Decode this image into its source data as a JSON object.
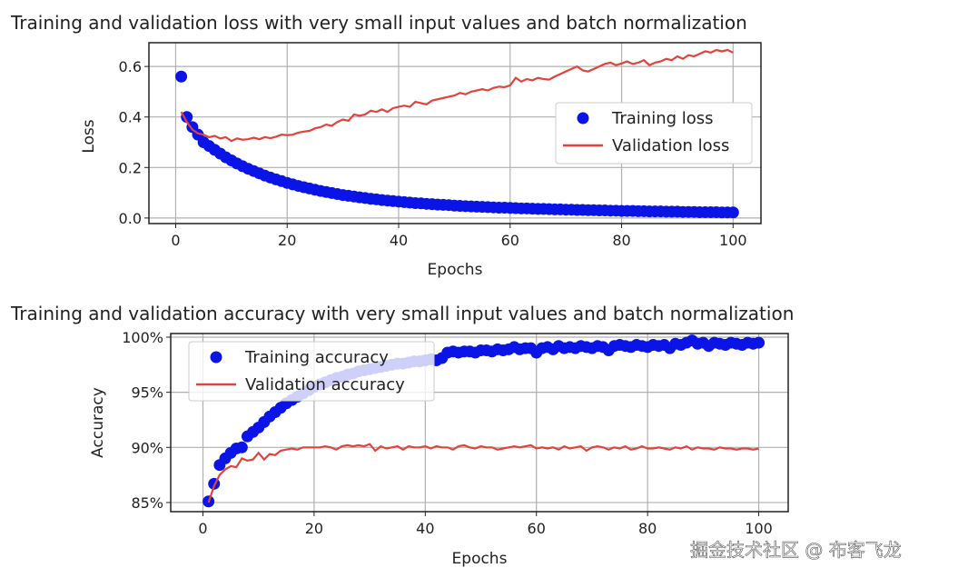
{
  "watermark": "掘金技术社区 @ 布客飞龙",
  "colors": {
    "training": "#0a14e6",
    "validation": "#e0443a",
    "grid": "#b0b0b0"
  },
  "chart_data": [
    {
      "type": "scatter+line",
      "title": "Training and validation loss with very small input values and batch normalization",
      "xlabel": "Epochs",
      "ylabel": "Loss",
      "xlim": [
        -4.8,
        105
      ],
      "ylim": [
        -0.022,
        0.694
      ],
      "xticks": [
        0,
        20,
        40,
        60,
        80,
        100
      ],
      "xtick_labels": [
        "0",
        "20",
        "40",
        "60",
        "80",
        "100"
      ],
      "yticks": [
        0,
        0.2,
        0.4,
        0.6
      ],
      "ytick_labels": [
        "0.0",
        "0.2",
        "0.4",
        "0.6"
      ],
      "grid": true,
      "legend": "center-right",
      "series": [
        {
          "name": "Training loss",
          "style": "points",
          "values": [
            0.56,
            0.4,
            0.36,
            0.33,
            0.3,
            0.285,
            0.27,
            0.255,
            0.24,
            0.228,
            0.216,
            0.205,
            0.195,
            0.186,
            0.177,
            0.168,
            0.16,
            0.153,
            0.146,
            0.139,
            0.133,
            0.127,
            0.122,
            0.117,
            0.112,
            0.107,
            0.103,
            0.099,
            0.095,
            0.091,
            0.088,
            0.085,
            0.082,
            0.079,
            0.076,
            0.074,
            0.071,
            0.069,
            0.067,
            0.065,
            0.063,
            0.061,
            0.059,
            0.058,
            0.056,
            0.055,
            0.053,
            0.052,
            0.051,
            0.049,
            0.048,
            0.047,
            0.046,
            0.045,
            0.044,
            0.043,
            0.042,
            0.041,
            0.041,
            0.04,
            0.039,
            0.038,
            0.038,
            0.037,
            0.036,
            0.036,
            0.035,
            0.034,
            0.034,
            0.033,
            0.033,
            0.032,
            0.032,
            0.031,
            0.031,
            0.03,
            0.03,
            0.029,
            0.029,
            0.028,
            0.028,
            0.028,
            0.027,
            0.027,
            0.026,
            0.026,
            0.026,
            0.025,
            0.025,
            0.025,
            0.024,
            0.024,
            0.024,
            0.023,
            0.023,
            0.023,
            0.023,
            0.022,
            0.022,
            0.022
          ]
        },
        {
          "name": "Validation loss",
          "style": "line",
          "values": [
            0.42,
            0.38,
            0.35,
            0.335,
            0.33,
            0.32,
            0.325,
            0.315,
            0.32,
            0.305,
            0.315,
            0.31,
            0.312,
            0.318,
            0.312,
            0.32,
            0.316,
            0.322,
            0.33,
            0.328,
            0.33,
            0.338,
            0.342,
            0.345,
            0.355,
            0.36,
            0.37,
            0.365,
            0.38,
            0.39,
            0.385,
            0.41,
            0.405,
            0.41,
            0.425,
            0.42,
            0.43,
            0.42,
            0.435,
            0.44,
            0.445,
            0.44,
            0.46,
            0.455,
            0.45,
            0.465,
            0.47,
            0.475,
            0.48,
            0.485,
            0.495,
            0.49,
            0.5,
            0.505,
            0.51,
            0.505,
            0.515,
            0.52,
            0.518,
            0.525,
            0.555,
            0.54,
            0.55,
            0.545,
            0.555,
            0.55,
            0.548,
            0.56,
            0.57,
            0.58,
            0.59,
            0.6,
            0.585,
            0.58,
            0.59,
            0.6,
            0.61,
            0.615,
            0.605,
            0.612,
            0.62,
            0.61,
            0.615,
            0.625,
            0.605,
            0.615,
            0.62,
            0.63,
            0.625,
            0.64,
            0.63,
            0.645,
            0.64,
            0.65,
            0.66,
            0.655,
            0.665,
            0.66,
            0.665,
            0.655
          ]
        }
      ]
    },
    {
      "type": "scatter+line",
      "title": "Training and validation accuracy with very small input values and batch normalization",
      "xlabel": "Epochs",
      "ylabel": "Accuracy",
      "xlim": [
        -5.8,
        105.3
      ],
      "ylim": [
        84.17,
        100.33
      ],
      "xticks": [
        0,
        20,
        40,
        60,
        80,
        100
      ],
      "xtick_labels": [
        "0",
        "20",
        "40",
        "60",
        "80",
        "100"
      ],
      "yticks": [
        85,
        90,
        95,
        100
      ],
      "ytick_labels": [
        "85%",
        "90%",
        "95%",
        "100%"
      ],
      "grid": true,
      "legend": "upper-left",
      "series": [
        {
          "name": "Training accuracy",
          "style": "points",
          "values": [
            85.1,
            86.7,
            88.4,
            89.0,
            89.5,
            89.9,
            90.0,
            91.0,
            91.4,
            91.8,
            92.3,
            92.8,
            93.2,
            93.6,
            94.0,
            94.3,
            94.6,
            94.9,
            95.2,
            95.5,
            95.7,
            95.9,
            96.1,
            96.3,
            96.4,
            96.6,
            96.7,
            96.9,
            97.0,
            97.1,
            97.2,
            97.3,
            97.4,
            97.5,
            97.6,
            97.6,
            97.7,
            97.8,
            97.8,
            97.9,
            98.0,
            97.9,
            98.1,
            98.6,
            98.7,
            98.6,
            98.7,
            98.7,
            98.6,
            98.8,
            98.8,
            98.7,
            98.9,
            98.8,
            98.9,
            99.1,
            98.9,
            99.0,
            99.0,
            98.6,
            99.0,
            99.1,
            98.9,
            99.2,
            99.0,
            99.1,
            99.0,
            99.2,
            99.1,
            99.0,
            99.2,
            99.1,
            98.8,
            99.2,
            99.3,
            99.2,
            99.1,
            99.3,
            99.2,
            99.1,
            99.3,
            99.2,
            99.3,
            99.0,
            99.4,
            99.3,
            99.5,
            99.7,
            99.4,
            99.5,
            99.2,
            99.5,
            99.4,
            99.3,
            99.5,
            99.4,
            99.3,
            99.5,
            99.4,
            99.5
          ]
        },
        {
          "name": "Validation accuracy",
          "style": "line",
          "values": [
            85.0,
            86.5,
            87.5,
            88.0,
            88.3,
            88.2,
            89.0,
            88.8,
            88.9,
            89.5,
            88.9,
            89.4,
            89.3,
            89.7,
            89.8,
            89.9,
            89.8,
            90.0,
            90.0,
            90.0,
            90.0,
            90.1,
            90.0,
            89.8,
            90.1,
            90.2,
            90.1,
            90.2,
            90.1,
            90.3,
            89.7,
            90.1,
            89.9,
            90.0,
            90.1,
            89.8,
            90.1,
            90.0,
            90.0,
            90.1,
            89.9,
            90.1,
            90.0,
            90.0,
            89.8,
            90.1,
            90.2,
            90.0,
            89.9,
            90.1,
            90.0,
            90.0,
            89.8,
            89.9,
            90.0,
            90.1,
            90.0,
            90.1,
            90.2,
            89.9,
            90.0,
            89.9,
            90.0,
            89.8,
            90.1,
            89.9,
            90.0,
            90.1,
            89.7,
            90.0,
            90.1,
            90.0,
            89.8,
            90.0,
            89.9,
            90.1,
            89.8,
            89.9,
            90.1,
            89.9,
            89.9,
            90.0,
            89.9,
            89.8,
            90.0,
            89.9,
            90.1,
            89.8,
            90.0,
            89.9,
            89.9,
            89.8,
            90.0,
            89.9,
            89.9,
            89.8,
            89.9,
            89.9,
            89.8,
            89.9
          ]
        }
      ]
    }
  ]
}
